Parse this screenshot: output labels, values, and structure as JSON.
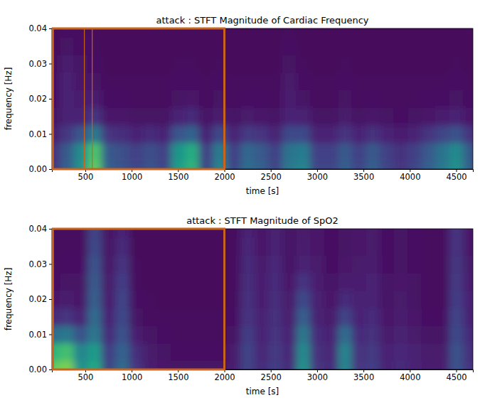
{
  "chart_data": [
    {
      "type": "heatmap",
      "title": "attack : STFT Magnitude of Cardiac Frequency",
      "xlabel": "time [s]",
      "ylabel": "frequency [Hz]",
      "x": [
        150,
        300,
        450,
        600,
        750,
        900,
        1050,
        1200,
        1350,
        1500,
        1650,
        1800,
        1950,
        2100,
        2250,
        2400,
        2550,
        2700,
        2850,
        3000,
        3150,
        3300,
        3450,
        3600,
        3750,
        3900,
        4050,
        4200,
        4350,
        4500,
        4650
      ],
      "y": [
        0,
        0.005,
        0.01,
        0.015,
        0.02,
        0.025,
        0.03,
        0.035,
        0.04
      ],
      "values": [
        [
          0.15,
          0.3,
          0.5,
          0.75,
          0.3,
          0.25,
          0.2,
          0.25,
          0.2,
          0.55,
          0.65,
          0.2,
          0.45,
          0.2,
          0.35,
          0.3,
          0.2,
          0.4,
          0.45,
          0.2,
          0.2,
          0.3,
          0.2,
          0.3,
          0.2,
          0.15,
          0.2,
          0.3,
          0.4,
          0.5,
          0.3
        ],
        [
          0.14,
          0.28,
          0.48,
          0.72,
          0.28,
          0.24,
          0.19,
          0.24,
          0.19,
          0.52,
          0.62,
          0.19,
          0.42,
          0.19,
          0.33,
          0.28,
          0.19,
          0.38,
          0.42,
          0.19,
          0.19,
          0.28,
          0.19,
          0.28,
          0.19,
          0.14,
          0.19,
          0.28,
          0.38,
          0.48,
          0.28
        ],
        [
          0.08,
          0.16,
          0.26,
          0.4,
          0.15,
          0.13,
          0.1,
          0.12,
          0.1,
          0.26,
          0.32,
          0.1,
          0.22,
          0.1,
          0.17,
          0.15,
          0.1,
          0.22,
          0.22,
          0.1,
          0.1,
          0.15,
          0.1,
          0.14,
          0.1,
          0.08,
          0.1,
          0.15,
          0.2,
          0.25,
          0.15
        ],
        [
          0.05,
          0.1,
          0.1,
          0.15,
          0.06,
          0.06,
          0.05,
          0.05,
          0.05,
          0.1,
          0.12,
          0.05,
          0.08,
          0.05,
          0.07,
          0.06,
          0.05,
          0.1,
          0.09,
          0.05,
          0.05,
          0.07,
          0.05,
          0.06,
          0.05,
          0.04,
          0.05,
          0.06,
          0.08,
          0.1,
          0.06
        ],
        [
          0.04,
          0.1,
          0.08,
          0.08,
          0.04,
          0.04,
          0.03,
          0.03,
          0.03,
          0.05,
          0.06,
          0.03,
          0.05,
          0.03,
          0.04,
          0.04,
          0.03,
          0.08,
          0.05,
          0.03,
          0.03,
          0.05,
          0.03,
          0.04,
          0.03,
          0.03,
          0.03,
          0.04,
          0.04,
          0.05,
          0.04
        ],
        [
          0.04,
          0.1,
          0.06,
          0.05,
          0.03,
          0.03,
          0.03,
          0.03,
          0.03,
          0.04,
          0.04,
          0.03,
          0.04,
          0.03,
          0.03,
          0.03,
          0.03,
          0.07,
          0.04,
          0.03,
          0.03,
          0.04,
          0.03,
          0.03,
          0.03,
          0.03,
          0.03,
          0.03,
          0.03,
          0.04,
          0.03
        ],
        [
          0.03,
          0.08,
          0.05,
          0.04,
          0.02,
          0.02,
          0.02,
          0.02,
          0.02,
          0.03,
          0.03,
          0.02,
          0.03,
          0.02,
          0.02,
          0.02,
          0.02,
          0.05,
          0.03,
          0.02,
          0.02,
          0.03,
          0.02,
          0.02,
          0.02,
          0.02,
          0.02,
          0.02,
          0.02,
          0.03,
          0.02
        ],
        [
          0.02,
          0.05,
          0.04,
          0.03,
          0.02,
          0.02,
          0.02,
          0.02,
          0.02,
          0.02,
          0.02,
          0.02,
          0.02,
          0.02,
          0.02,
          0.02,
          0.02,
          0.04,
          0.02,
          0.02,
          0.02,
          0.02,
          0.02,
          0.02,
          0.02,
          0.02,
          0.02,
          0.02,
          0.02,
          0.02,
          0.02
        ],
        [
          0.02,
          0.04,
          0.03,
          0.02,
          0.02,
          0.02,
          0.02,
          0.02,
          0.02,
          0.02,
          0.02,
          0.02,
          0.02,
          0.02,
          0.02,
          0.02,
          0.02,
          0.03,
          0.02,
          0.02,
          0.02,
          0.02,
          0.02,
          0.02,
          0.02,
          0.02,
          0.02,
          0.02,
          0.02,
          0.02,
          0.02
        ]
      ],
      "color": "viridis",
      "zlim": [
        0,
        1
      ],
      "xlim": [
        140,
        4680
      ],
      "ylim": [
        0,
        0.04
      ],
      "xticks": [
        500,
        1000,
        1500,
        2000,
        2500,
        3000,
        3500,
        4000,
        4500
      ],
      "yticks": [
        {
          "value": 0,
          "label": "0.00"
        },
        {
          "value": 0.01,
          "label": "0.01"
        },
        {
          "value": 0.02,
          "label": "0.02"
        },
        {
          "value": 0.03,
          "label": "0.03"
        },
        {
          "value": 0.04,
          "label": "0.04"
        }
      ],
      "highlights": [
        {
          "x0": 150,
          "x1": 2000,
          "y0": 0,
          "y1": 0.04
        }
      ],
      "vlines": [
        490,
        575
      ]
    },
    {
      "type": "heatmap",
      "title": "attack : STFT Magnitude of SpO2",
      "xlabel": "time [s]",
      "ylabel": "frequency [Hz]",
      "x": [
        150,
        300,
        450,
        600,
        750,
        900,
        1050,
        1200,
        1350,
        1500,
        1650,
        1800,
        1950,
        2100,
        2250,
        2400,
        2550,
        2700,
        2850,
        3000,
        3150,
        3300,
        3450,
        3600,
        3750,
        3900,
        4050,
        4200,
        4350,
        4500,
        4650
      ],
      "y": [
        0,
        0.005,
        0.01,
        0.015,
        0.02,
        0.025,
        0.03,
        0.035,
        0.04
      ],
      "values": [
        [
          0.75,
          0.8,
          0.5,
          0.6,
          0.2,
          0.35,
          0.15,
          0.08,
          0.06,
          0.05,
          0.05,
          0.05,
          0.05,
          0.08,
          0.2,
          0.12,
          0.18,
          0.12,
          0.5,
          0.15,
          0.12,
          0.45,
          0.15,
          0.18,
          0.1,
          0.12,
          0.1,
          0.08,
          0.08,
          0.25,
          0.15
        ],
        [
          0.65,
          0.7,
          0.45,
          0.55,
          0.18,
          0.32,
          0.13,
          0.07,
          0.05,
          0.04,
          0.04,
          0.04,
          0.04,
          0.07,
          0.2,
          0.11,
          0.17,
          0.11,
          0.48,
          0.14,
          0.11,
          0.45,
          0.14,
          0.17,
          0.09,
          0.11,
          0.09,
          0.07,
          0.07,
          0.25,
          0.14
        ],
        [
          0.35,
          0.4,
          0.25,
          0.4,
          0.12,
          0.25,
          0.08,
          0.05,
          0.04,
          0.03,
          0.03,
          0.03,
          0.03,
          0.05,
          0.18,
          0.1,
          0.15,
          0.09,
          0.4,
          0.12,
          0.09,
          0.35,
          0.12,
          0.14,
          0.07,
          0.09,
          0.07,
          0.05,
          0.05,
          0.22,
          0.12
        ],
        [
          0.12,
          0.15,
          0.1,
          0.35,
          0.1,
          0.22,
          0.05,
          0.03,
          0.03,
          0.03,
          0.03,
          0.03,
          0.03,
          0.04,
          0.15,
          0.09,
          0.14,
          0.08,
          0.3,
          0.1,
          0.07,
          0.2,
          0.1,
          0.12,
          0.06,
          0.08,
          0.06,
          0.04,
          0.04,
          0.2,
          0.1
        ],
        [
          0.06,
          0.08,
          0.06,
          0.3,
          0.08,
          0.2,
          0.04,
          0.03,
          0.02,
          0.02,
          0.02,
          0.02,
          0.02,
          0.03,
          0.14,
          0.08,
          0.13,
          0.07,
          0.22,
          0.09,
          0.06,
          0.12,
          0.09,
          0.1,
          0.05,
          0.07,
          0.05,
          0.03,
          0.03,
          0.18,
          0.09
        ],
        [
          0.04,
          0.05,
          0.05,
          0.28,
          0.07,
          0.18,
          0.03,
          0.02,
          0.02,
          0.02,
          0.02,
          0.02,
          0.02,
          0.03,
          0.13,
          0.08,
          0.12,
          0.06,
          0.15,
          0.08,
          0.05,
          0.08,
          0.08,
          0.09,
          0.05,
          0.06,
          0.05,
          0.03,
          0.03,
          0.17,
          0.08
        ],
        [
          0.03,
          0.04,
          0.04,
          0.25,
          0.06,
          0.15,
          0.03,
          0.02,
          0.02,
          0.02,
          0.02,
          0.02,
          0.02,
          0.03,
          0.12,
          0.07,
          0.11,
          0.05,
          0.1,
          0.07,
          0.04,
          0.06,
          0.07,
          0.08,
          0.04,
          0.05,
          0.04,
          0.03,
          0.03,
          0.16,
          0.07
        ],
        [
          0.03,
          0.03,
          0.03,
          0.22,
          0.05,
          0.12,
          0.02,
          0.02,
          0.02,
          0.02,
          0.02,
          0.02,
          0.02,
          0.03,
          0.11,
          0.06,
          0.1,
          0.05,
          0.08,
          0.06,
          0.04,
          0.05,
          0.06,
          0.07,
          0.04,
          0.05,
          0.04,
          0.03,
          0.03,
          0.15,
          0.06
        ],
        [
          0.03,
          0.03,
          0.03,
          0.2,
          0.05,
          0.1,
          0.02,
          0.02,
          0.02,
          0.02,
          0.02,
          0.02,
          0.02,
          0.03,
          0.1,
          0.06,
          0.09,
          0.05,
          0.07,
          0.06,
          0.04,
          0.05,
          0.06,
          0.07,
          0.04,
          0.05,
          0.04,
          0.03,
          0.03,
          0.15,
          0.06
        ]
      ],
      "color": "viridis",
      "zlim": [
        0,
        1
      ],
      "xlim": [
        140,
        4680
      ],
      "ylim": [
        0,
        0.04
      ],
      "xticks": [
        500,
        1000,
        1500,
        2000,
        2500,
        3000,
        3500,
        4000,
        4500
      ],
      "yticks": [
        {
          "value": 0,
          "label": "0.00"
        },
        {
          "value": 0.01,
          "label": "0.01"
        },
        {
          "value": 0.02,
          "label": "0.02"
        },
        {
          "value": 0.03,
          "label": "0.03"
        },
        {
          "value": 0.04,
          "label": "0.04"
        }
      ],
      "highlights": [
        {
          "x0": 150,
          "x1": 2000,
          "y0": 0,
          "y1": 0.04
        }
      ]
    }
  ]
}
